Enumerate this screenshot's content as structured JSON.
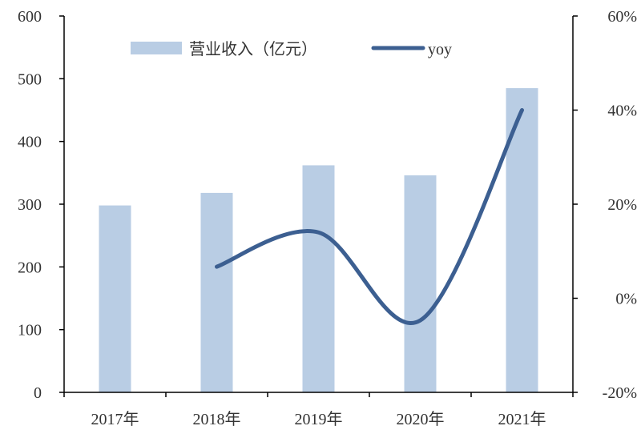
{
  "chart_data": {
    "type": "bar",
    "categories": [
      "2017年",
      "2018年",
      "2019年",
      "2020年",
      "2021年"
    ],
    "series": [
      {
        "name": "营业收入（亿元）",
        "type": "bar",
        "axis": "left",
        "color": "#b9cde4",
        "values": [
          298,
          318,
          362,
          346,
          485
        ]
      },
      {
        "name": "yoy",
        "type": "line",
        "axis": "right",
        "color": "#3c5f91",
        "values": [
          null,
          6.7,
          14.0,
          -4.7,
          40.0
        ]
      }
    ],
    "left_axis": {
      "ylim": [
        0,
        600
      ],
      "ticks": [
        0,
        100,
        200,
        300,
        400,
        500,
        600
      ],
      "tick_labels": [
        "0",
        "100",
        "200",
        "300",
        "400",
        "500",
        "600"
      ]
    },
    "right_axis": {
      "ylim": [
        -20,
        60
      ],
      "ticks": [
        -20,
        0,
        20,
        40,
        60
      ],
      "tick_labels": [
        "-20%",
        "0%",
        "20%",
        "40%",
        "60%"
      ]
    },
    "grid": false,
    "legend": {
      "position": "top"
    }
  }
}
